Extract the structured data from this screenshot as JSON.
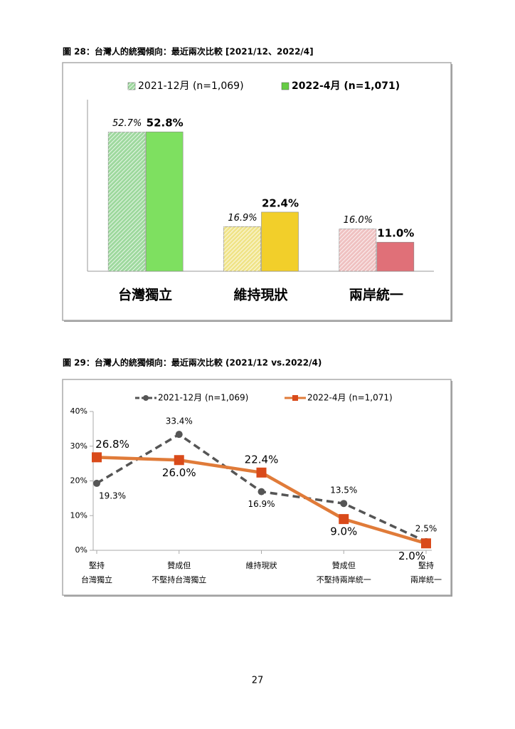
{
  "chart_data": [
    {
      "type": "bar",
      "title": "圖 28：台灣人的統獨傾向：最近兩次比較  [2021/12、2022/4]",
      "categories": [
        "台灣獨立",
        "維持現狀",
        "兩岸統一"
      ],
      "series": [
        {
          "name": "2021-12月 (n=1,069)",
          "color": "#9ed99e",
          "colors": [
            "#9ed99e",
            "#f0e48a",
            "#efc1c1"
          ],
          "values": [
            52.7,
            16.9,
            16.0
          ],
          "value_labels": [
            "52.7%",
            "16.9%",
            "16.0%"
          ]
        },
        {
          "name": "2022-4月 (n=1,071)",
          "color": "#66cc44",
          "colors": [
            "#7ee060",
            "#f2cf2a",
            "#e07078"
          ],
          "values": [
            52.8,
            22.4,
            11.0
          ],
          "value_labels": [
            "52.8%",
            "22.4%",
            "11.0%"
          ]
        }
      ],
      "ylim": [
        0,
        65
      ]
    },
    {
      "type": "line",
      "title": "圖 29：台灣人的統獨傾向：最近兩次比較  (2021/12 vs.2022/4)",
      "categories": [
        [
          "堅持",
          "台灣獨立"
        ],
        [
          "贊成但",
          "不堅持台灣獨立"
        ],
        [
          "維持現狀"
        ],
        [
          "贊成但",
          "不堅持兩岸統一"
        ],
        [
          "堅持",
          "兩岸統一"
        ]
      ],
      "series": [
        {
          "name": "2021-12月 (n=1,069)",
          "color": "#555555",
          "dashed": true,
          "values": [
            19.3,
            33.4,
            16.9,
            13.5,
            2.5
          ],
          "value_labels": [
            "19.3%",
            "33.4%",
            "16.9%",
            "13.5%",
            "2.5%"
          ]
        },
        {
          "name": "2022-4月 (n=1,071)",
          "color": "#e07b39",
          "dashed": false,
          "values": [
            26.8,
            26.0,
            22.4,
            9.0,
            2.0
          ],
          "value_labels": [
            "26.8%",
            "26.0%",
            "22.4%",
            "9.0%",
            "2.0%"
          ]
        }
      ],
      "ylim": [
        0,
        40
      ],
      "yticks": [
        {
          "value": 0,
          "label": "0%"
        },
        {
          "value": 10,
          "label": "10%"
        },
        {
          "value": 20,
          "label": "20%"
        },
        {
          "value": 30,
          "label": "30%"
        },
        {
          "value": 40,
          "label": "40%"
        }
      ]
    }
  ],
  "page_number": "27"
}
